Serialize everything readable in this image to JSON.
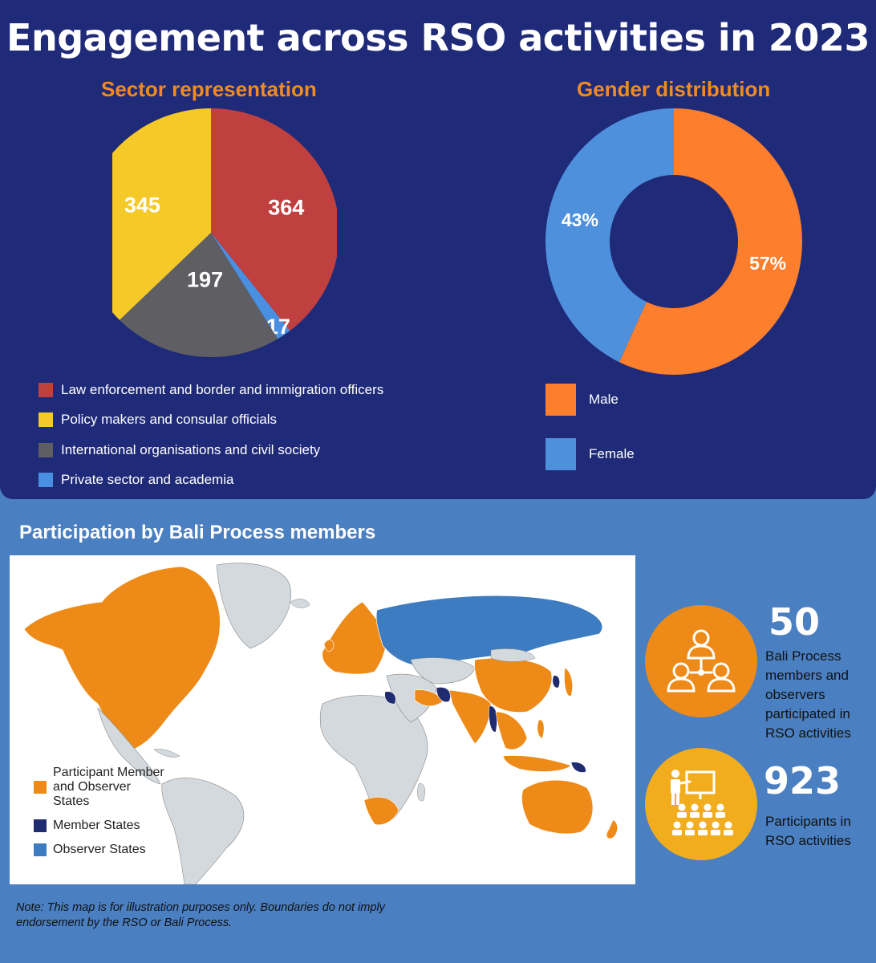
{
  "title": "Engagement across RSO activities in 2023",
  "colors": {
    "navy": "#1f2a78",
    "steel_blue": "#4a7fc1",
    "orange": "#f28a22",
    "law": "#c03f3f",
    "policy": "#f4c928",
    "intl": "#5f5f63",
    "private": "#4a90e2",
    "male": "#fd7e2c",
    "female": "#4e90dc",
    "map_participant": "#ee8a17",
    "map_member": "#1f2c70",
    "map_observer": "#3d7cc0",
    "map_other": "#d3d9dd"
  },
  "chart_data": [
    {
      "type": "pie",
      "title": "Sector representation",
      "slices": [
        {
          "label": "Law enforcement and border and immigration officers",
          "value": 364,
          "display": "364",
          "color": "#c03f3f"
        },
        {
          "label": "Private sector and academia",
          "value": 17,
          "display": "17",
          "color": "#4a90e2"
        },
        {
          "label": "International organisations and civil society",
          "value": 197,
          "display": "197",
          "color": "#5f5f63"
        },
        {
          "label": "Policy makers and consular officials",
          "value": 345,
          "display": "345",
          "color": "#f4c928"
        }
      ],
      "legend": [
        {
          "label": "Law enforcement and border and immigration officers",
          "color": "#c03f3f"
        },
        {
          "label": "Policy makers and consular officials",
          "color": "#f4c928"
        },
        {
          "label": "International organisations and civil society",
          "color": "#5f5f63"
        },
        {
          "label": "Private sector and academia",
          "color": "#4a90e2"
        }
      ],
      "legend_placement": "bottom-left"
    },
    {
      "type": "pie",
      "subtype": "donut",
      "title": "Gender distribution",
      "slices": [
        {
          "label": "Male",
          "value": 57,
          "display": "57%",
          "color": "#fd7e2c"
        },
        {
          "label": "Female",
          "value": 43,
          "display": "43%",
          "color": "#4e90dc"
        }
      ],
      "legend": [
        {
          "label": "Male",
          "color": "#fd7e2c"
        },
        {
          "label": "Female",
          "color": "#4e90dc"
        }
      ],
      "legend_placement": "bottom-left"
    }
  ],
  "map": {
    "title": "Participation by Bali Process members",
    "legend": [
      {
        "label": "Participant Member and Observer States",
        "color": "#ee8a17"
      },
      {
        "label": "Member States",
        "color": "#1f2c70"
      },
      {
        "label": "Observer States",
        "color": "#3d7cc0"
      }
    ],
    "note": "Note: This map is for illustration purposes only. Boundaries do not imply endorsement by the RSO or Bali Process."
  },
  "stats": [
    {
      "value": "50",
      "text": "Bali Process members and observers participated in RSO activities",
      "icon": "people-network-icon",
      "color": "#ee8a17"
    },
    {
      "value": "923",
      "text": "Participants in RSO activities",
      "icon": "presentation-audience-icon",
      "color": "#f2ad1f"
    }
  ]
}
